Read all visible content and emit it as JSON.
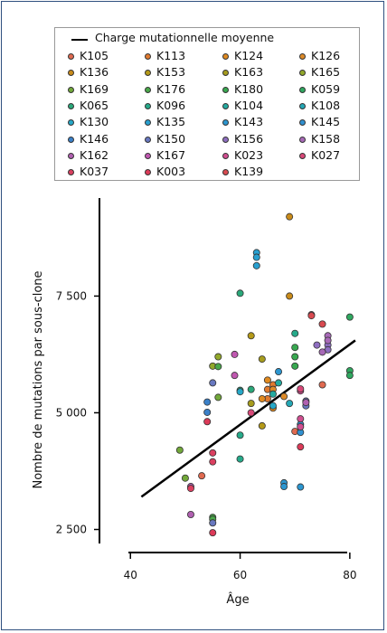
{
  "chart_data": {
    "type": "scatter",
    "xlabel": "Âge",
    "ylabel": "Nombre de mutations par sous-clone",
    "xlim": [
      36,
      82
    ],
    "ylim": [
      2200,
      9600
    ],
    "xticks": [
      40,
      60,
      80
    ],
    "yticks": [
      2500,
      5000,
      7500
    ],
    "xtick_labels": [
      "40",
      "60",
      "80"
    ],
    "ytick_labels": [
      "2 500",
      "5 000",
      "7 500"
    ],
    "legend_position": "top",
    "trend_line": {
      "name": "Charge mutationnelle moyenne",
      "x": [
        42,
        81
      ],
      "y": [
        3200,
        6550
      ]
    },
    "series": [
      {
        "name": "K105",
        "color": "#e06a50",
        "points": [
          [
            53,
            3650
          ],
          [
            75,
            5600
          ],
          [
            70,
            4600
          ]
        ]
      },
      {
        "name": "K113",
        "color": "#e07a30",
        "points": [
          [
            65,
            5500
          ],
          [
            66,
            5600
          ],
          [
            65,
            5300
          ]
        ]
      },
      {
        "name": "K124",
        "color": "#e08a20",
        "points": [
          [
            64,
            5300
          ],
          [
            65,
            5700
          ],
          [
            66,
            5100
          ]
        ]
      },
      {
        "name": "K126",
        "color": "#dd8a28",
        "points": [
          [
            66,
            5500
          ],
          [
            68,
            5350
          ]
        ]
      },
      {
        "name": "K136",
        "color": "#c98b1a",
        "points": [
          [
            69,
            9200
          ],
          [
            69,
            7500
          ]
        ]
      },
      {
        "name": "K153",
        "color": "#b59a18",
        "points": [
          [
            64,
            4720
          ],
          [
            62,
            6650
          ]
        ]
      },
      {
        "name": "K163",
        "color": "#a69c1d",
        "points": [
          [
            62,
            5200
          ],
          [
            64,
            6150
          ]
        ]
      },
      {
        "name": "K165",
        "color": "#92a82a",
        "points": [
          [
            56,
            6200
          ],
          [
            55,
            6000
          ]
        ]
      },
      {
        "name": "K169",
        "color": "#72a83a",
        "points": [
          [
            49,
            4200
          ],
          [
            50,
            3600
          ],
          [
            56,
            5330
          ]
        ]
      },
      {
        "name": "K176",
        "color": "#4aa84a",
        "points": [
          [
            55,
            2760
          ],
          [
            55,
            2720
          ],
          [
            56,
            5990
          ]
        ]
      },
      {
        "name": "K180",
        "color": "#38a850",
        "points": [
          [
            70,
            6400
          ],
          [
            70,
            6200
          ],
          [
            70,
            6000
          ]
        ]
      },
      {
        "name": "K059",
        "color": "#30a860",
        "points": [
          [
            80,
            7050
          ],
          [
            80,
            5900
          ],
          [
            80,
            5800
          ]
        ]
      },
      {
        "name": "K065",
        "color": "#2aa87a",
        "points": [
          [
            60,
            7560
          ],
          [
            60,
            5480
          ],
          [
            62,
            5500
          ]
        ]
      },
      {
        "name": "K096",
        "color": "#26aa8a",
        "points": [
          [
            60,
            4520
          ],
          [
            60,
            4010
          ],
          [
            70,
            6700
          ]
        ]
      },
      {
        "name": "K104",
        "color": "#24aaa0",
        "points": [
          [
            67,
            5640
          ],
          [
            66,
            5400
          ]
        ]
      },
      {
        "name": "K108",
        "color": "#24a8b6",
        "points": [
          [
            69,
            5200
          ]
        ]
      },
      {
        "name": "K130",
        "color": "#26a8c8",
        "points": [
          [
            60,
            5450
          ],
          [
            66,
            5150
          ]
        ]
      },
      {
        "name": "K135",
        "color": "#28a0d0",
        "points": [
          [
            63,
            8430
          ],
          [
            63,
            8330
          ],
          [
            63,
            8150
          ]
        ]
      },
      {
        "name": "K143",
        "color": "#2c96d0",
        "points": [
          [
            67,
            5880
          ],
          [
            68,
            3500
          ],
          [
            68,
            3420
          ],
          [
            71,
            3410
          ]
        ]
      },
      {
        "name": "K145",
        "color": "#3090d0",
        "points": [
          [
            71,
            4580
          ],
          [
            71,
            4750
          ]
        ]
      },
      {
        "name": "K146",
        "color": "#3a80c8",
        "points": [
          [
            54,
            5230
          ],
          [
            54,
            5010
          ]
        ]
      },
      {
        "name": "K150",
        "color": "#6878c0",
        "points": [
          [
            55,
            2640
          ],
          [
            55,
            5640
          ],
          [
            72,
            5250
          ],
          [
            72,
            5150
          ]
        ]
      },
      {
        "name": "K156",
        "color": "#8e6ec0",
        "points": [
          [
            76,
            6450
          ],
          [
            76,
            6350
          ],
          [
            74,
            6450
          ]
        ]
      },
      {
        "name": "K158",
        "color": "#a86ab8",
        "points": [
          [
            76,
            6650
          ],
          [
            76,
            6550
          ],
          [
            75,
            6300
          ]
        ]
      },
      {
        "name": "K162",
        "color": "#b060b0",
        "points": [
          [
            51,
            3420
          ],
          [
            51,
            2820
          ],
          [
            72,
            5220
          ]
        ]
      },
      {
        "name": "K167",
        "color": "#c058b0",
        "points": [
          [
            59,
            6250
          ],
          [
            59,
            5800
          ]
        ]
      },
      {
        "name": "K023",
        "color": "#d04e90",
        "points": [
          [
            71,
            4870
          ],
          [
            71,
            4700
          ],
          [
            71,
            5470
          ]
        ]
      },
      {
        "name": "K027",
        "color": "#d84878",
        "points": [
          [
            62,
            5000
          ],
          [
            73,
            7100
          ],
          [
            71,
            5510
          ]
        ]
      },
      {
        "name": "K037",
        "color": "#da4060",
        "points": [
          [
            51,
            3380
          ],
          [
            55,
            3950
          ],
          [
            55,
            4140
          ]
        ]
      },
      {
        "name": "K003",
        "color": "#dc3a58",
        "points": [
          [
            55,
            2430
          ],
          [
            54,
            4810
          ],
          [
            71,
            4270
          ]
        ]
      },
      {
        "name": "K139",
        "color": "#d94a50",
        "points": [
          [
            73,
            7080
          ],
          [
            75,
            6900
          ]
        ]
      }
    ]
  }
}
